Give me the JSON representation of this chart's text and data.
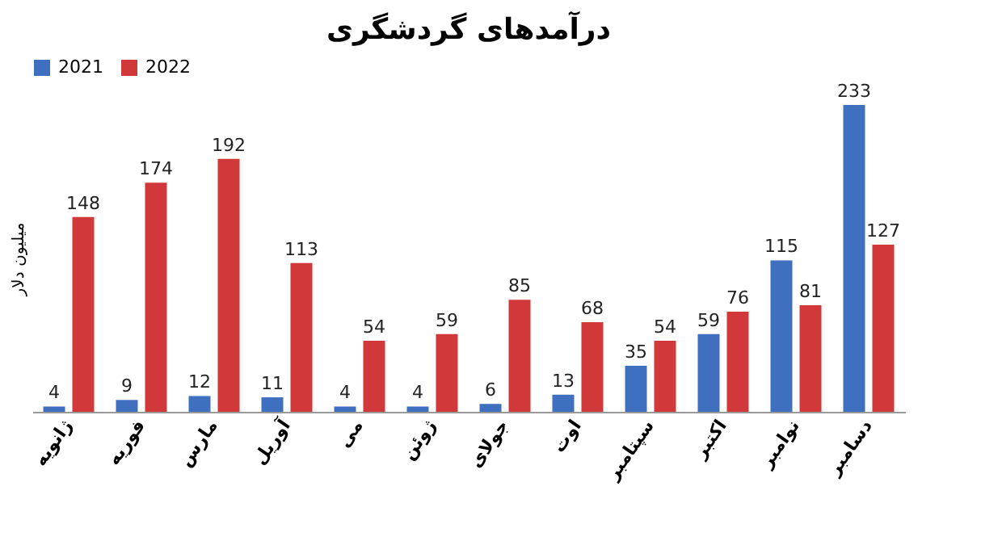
{
  "chart_data": {
    "type": "bar",
    "title": "درآمدهای گردشگری",
    "ylabel": "میلیون دلار",
    "categories": [
      "ژانویه",
      "فوریه",
      "مارس",
      "آوریل",
      "می",
      "ژوئن",
      "جولای",
      "اوت",
      "سپتامبر",
      "اکتبر",
      "نوامبر",
      "دسامبر"
    ],
    "series": [
      {
        "name": "2021",
        "color": "#3f6fbf",
        "values": [
          4,
          9,
          12,
          11,
          4,
          4,
          6,
          13,
          35,
          59,
          115,
          233
        ]
      },
      {
        "name": "2022",
        "color": "#d0383a",
        "values": [
          148,
          174,
          192,
          113,
          54,
          59,
          85,
          68,
          54,
          76,
          81,
          127
        ]
      }
    ],
    "data_labels": true,
    "legend": "top",
    "grid": false
  }
}
